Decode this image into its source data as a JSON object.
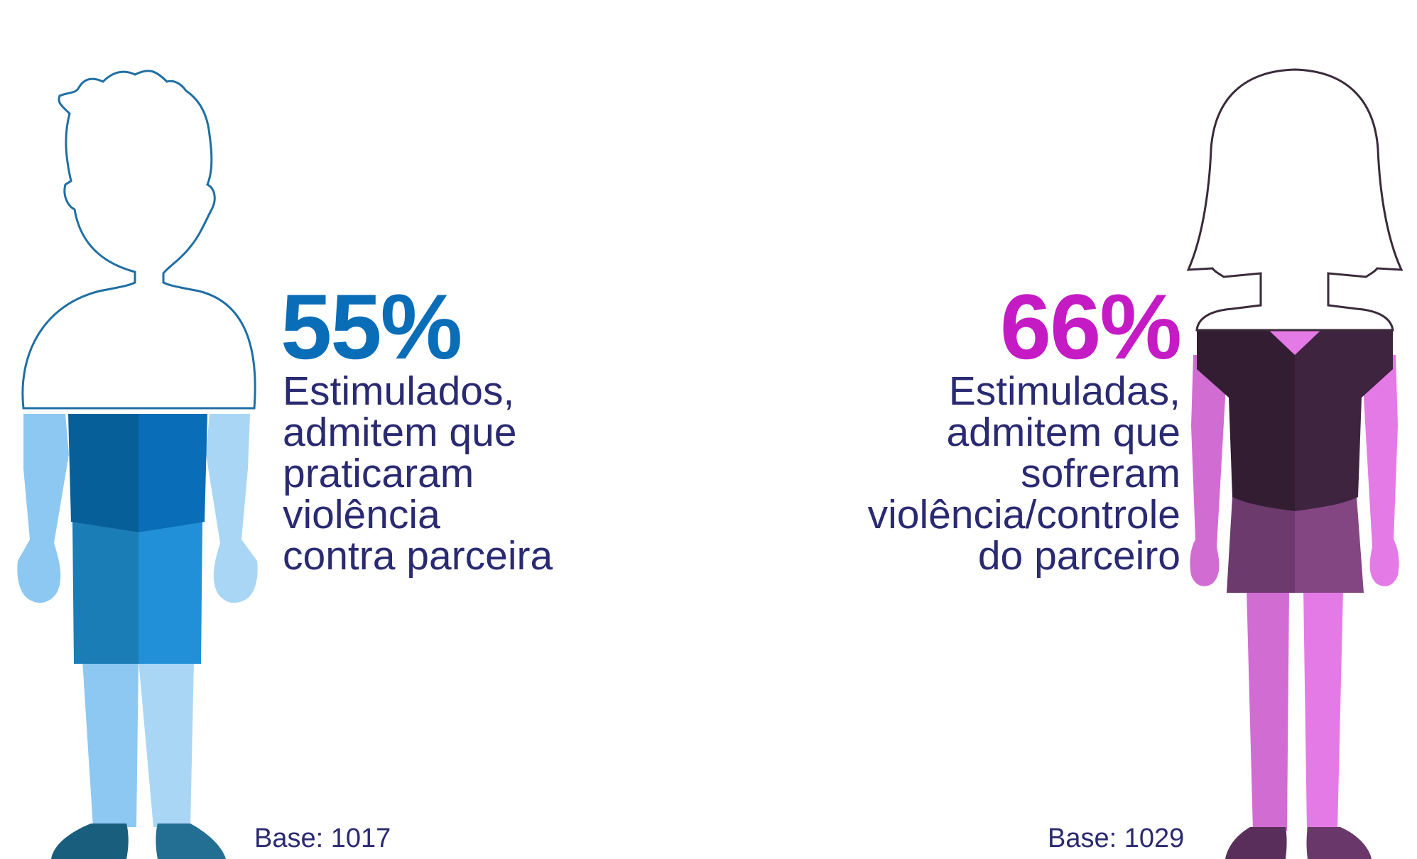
{
  "male": {
    "percent": "55%",
    "percent_value": 55,
    "caption_lines": [
      "Estimulados,",
      "admitem que",
      "praticaram",
      "violência",
      "contra parceira"
    ],
    "base": "Base: 1017",
    "color": "#0a6db8"
  },
  "female": {
    "percent": "66%",
    "percent_value": 66,
    "caption_lines": [
      "Estimuladas,",
      "admitem que",
      "sofreram",
      "violência/controle",
      "do parceiro"
    ],
    "base": "Base: 1029",
    "color": "#c41bc4"
  },
  "text_color": "#2a2a72"
}
